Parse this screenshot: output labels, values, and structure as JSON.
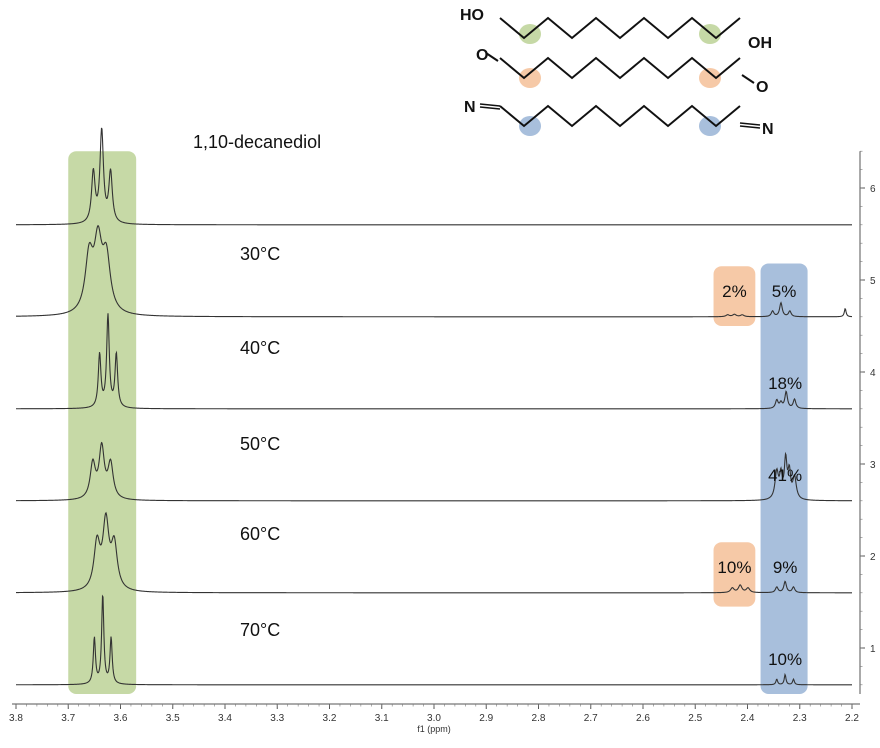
{
  "chart_data": {
    "type": "line",
    "xlabel": "f1 (ppm)",
    "xlim": [
      3.8,
      2.2
    ],
    "x_ticks": [
      "3.8",
      "3.7",
      "3.6",
      "3.5",
      "3.4",
      "3.3",
      "3.2",
      "3.1",
      "3.0",
      "2.9",
      "2.8",
      "2.7",
      "2.6",
      "2.5",
      "2.4",
      "2.3",
      "2.2"
    ],
    "ylim": [
      0.5,
      6.4
    ],
    "y_ticks": [
      "1",
      "2",
      "3",
      "4",
      "5",
      "6"
    ],
    "series": [
      {
        "label": "1,10-decanediol",
        "baseline": 5.6,
        "peaks": [
          {
            "x": 3.652,
            "h": 0.55,
            "w": 0.004
          },
          {
            "x": 3.636,
            "h": 1.0,
            "w": 0.004
          },
          {
            "x": 3.619,
            "h": 0.55,
            "w": 0.004
          }
        ]
      },
      {
        "label": "30°C",
        "baseline": 4.6,
        "peaks": [
          {
            "x": 3.66,
            "h": 0.6,
            "w": 0.009
          },
          {
            "x": 3.643,
            "h": 0.72,
            "w": 0.009
          },
          {
            "x": 3.627,
            "h": 0.58,
            "w": 0.009
          },
          {
            "x": 2.438,
            "h": 0.02,
            "w": 0.004
          },
          {
            "x": 2.425,
            "h": 0.025,
            "w": 0.004
          },
          {
            "x": 2.41,
            "h": 0.02,
            "w": 0.004
          },
          {
            "x": 2.352,
            "h": 0.06,
            "w": 0.003
          },
          {
            "x": 2.336,
            "h": 0.15,
            "w": 0.003
          },
          {
            "x": 2.319,
            "h": 0.06,
            "w": 0.003
          },
          {
            "x": 2.213,
            "h": 0.09,
            "w": 0.002
          }
        ]
      },
      {
        "label": "40°C",
        "baseline": 3.6,
        "peaks": [
          {
            "x": 3.64,
            "h": 0.58,
            "w": 0.003
          },
          {
            "x": 3.624,
            "h": 1.0,
            "w": 0.003
          },
          {
            "x": 3.608,
            "h": 0.58,
            "w": 0.003
          },
          {
            "x": 2.344,
            "h": 0.09,
            "w": 0.003
          },
          {
            "x": 2.336,
            "h": 0.06,
            "w": 0.003
          },
          {
            "x": 2.326,
            "h": 0.18,
            "w": 0.003
          },
          {
            "x": 2.31,
            "h": 0.1,
            "w": 0.003
          }
        ]
      },
      {
        "label": "50°C",
        "baseline": 2.6,
        "peaks": [
          {
            "x": 3.653,
            "h": 0.38,
            "w": 0.006
          },
          {
            "x": 3.636,
            "h": 0.55,
            "w": 0.006
          },
          {
            "x": 3.619,
            "h": 0.38,
            "w": 0.006
          },
          {
            "x": 2.344,
            "h": 0.3,
            "w": 0.004
          },
          {
            "x": 2.336,
            "h": 0.24,
            "w": 0.003
          },
          {
            "x": 2.327,
            "h": 0.42,
            "w": 0.003
          },
          {
            "x": 2.32,
            "h": 0.28,
            "w": 0.003
          },
          {
            "x": 2.31,
            "h": 0.24,
            "w": 0.004
          }
        ]
      },
      {
        "label": "60°C",
        "baseline": 1.6,
        "peaks": [
          {
            "x": 3.645,
            "h": 0.5,
            "w": 0.007
          },
          {
            "x": 3.628,
            "h": 0.72,
            "w": 0.007
          },
          {
            "x": 3.612,
            "h": 0.48,
            "w": 0.007
          },
          {
            "x": 2.429,
            "h": 0.05,
            "w": 0.004
          },
          {
            "x": 2.414,
            "h": 0.08,
            "w": 0.004
          },
          {
            "x": 2.399,
            "h": 0.05,
            "w": 0.004
          },
          {
            "x": 2.344,
            "h": 0.06,
            "w": 0.003
          },
          {
            "x": 2.328,
            "h": 0.12,
            "w": 0.003
          },
          {
            "x": 2.312,
            "h": 0.06,
            "w": 0.003
          }
        ]
      },
      {
        "label": "70°C",
        "baseline": 0.6,
        "peaks": [
          {
            "x": 3.65,
            "h": 0.5,
            "w": 0.0025
          },
          {
            "x": 3.634,
            "h": 0.97,
            "w": 0.0025
          },
          {
            "x": 3.618,
            "h": 0.5,
            "w": 0.0025
          },
          {
            "x": 2.344,
            "h": 0.06,
            "w": 0.002
          },
          {
            "x": 2.328,
            "h": 0.11,
            "w": 0.002
          },
          {
            "x": 2.312,
            "h": 0.06,
            "w": 0.002
          }
        ]
      }
    ],
    "highlights": [
      {
        "name": "alcohol-band",
        "x_range": [
          3.7,
          3.57
        ],
        "y_range": [
          0.5,
          6.4
        ],
        "color": "#c6d9a6"
      },
      {
        "name": "nitrile-band",
        "x_range": [
          2.375,
          2.285
        ],
        "y_range": [
          0.5,
          5.18
        ],
        "color": "#a8bfdc"
      },
      {
        "name": "aldehyde-box-30",
        "x_range": [
          2.465,
          2.385
        ],
        "y_range": [
          4.5,
          5.15
        ],
        "color": "#f6c9a7"
      },
      {
        "name": "aldehyde-box-60",
        "x_range": [
          2.465,
          2.385
        ],
        "y_range": [
          1.45,
          2.15
        ],
        "color": "#f6c9a7"
      }
    ],
    "annotations": [
      {
        "text": "2%",
        "x": 2.425,
        "y": 4.88
      },
      {
        "text": "5%",
        "x": 2.33,
        "y": 4.88
      },
      {
        "text": "18%",
        "x": 2.328,
        "y": 3.88
      },
      {
        "text": "41%",
        "x": 2.328,
        "y": 2.88
      },
      {
        "text": "10%",
        "x": 2.425,
        "y": 1.88
      },
      {
        "text": "9%",
        "x": 2.328,
        "y": 1.88
      },
      {
        "text": "10%",
        "x": 2.328,
        "y": 0.88
      }
    ],
    "structures": [
      {
        "name": "diol",
        "left_group": "HO",
        "right_group": "OH",
        "marker_color": "#c6d9a6"
      },
      {
        "name": "dialdehyde",
        "left_group": "O",
        "right_group": "O",
        "marker_color": "#f6c9a7"
      },
      {
        "name": "dinitrile",
        "left_group": "N",
        "right_group": "N",
        "marker_color": "#a8bfdc"
      }
    ],
    "colors": {
      "spectrum": "#333333",
      "green": "#c6d9a6",
      "orange": "#f6c9a7",
      "blue": "#a8bfdc"
    }
  }
}
